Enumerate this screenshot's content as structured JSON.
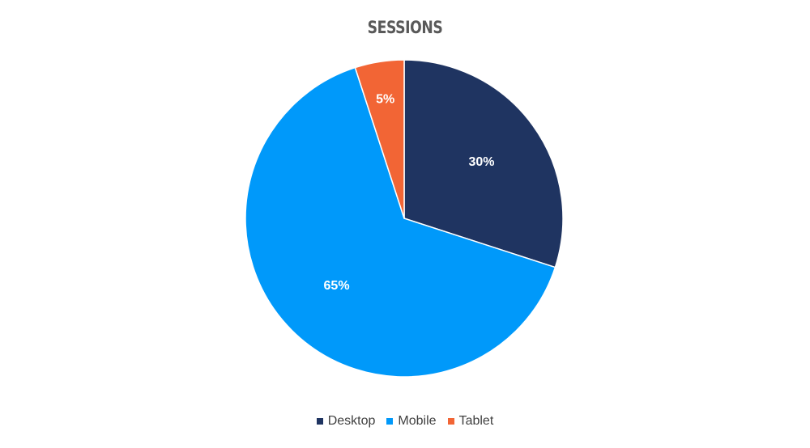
{
  "chart_data": {
    "type": "pie",
    "title": "SESSIONS",
    "categories": [
      "Desktop",
      "Mobile",
      "Tablet"
    ],
    "values": [
      30,
      65,
      5
    ],
    "labels": [
      "30%",
      "65%",
      "5%"
    ],
    "colors": [
      "#1f3461",
      "#0099fa",
      "#f26535"
    ],
    "start_angle_deg": 0,
    "direction": "clockwise",
    "legend_position": "bottom"
  }
}
